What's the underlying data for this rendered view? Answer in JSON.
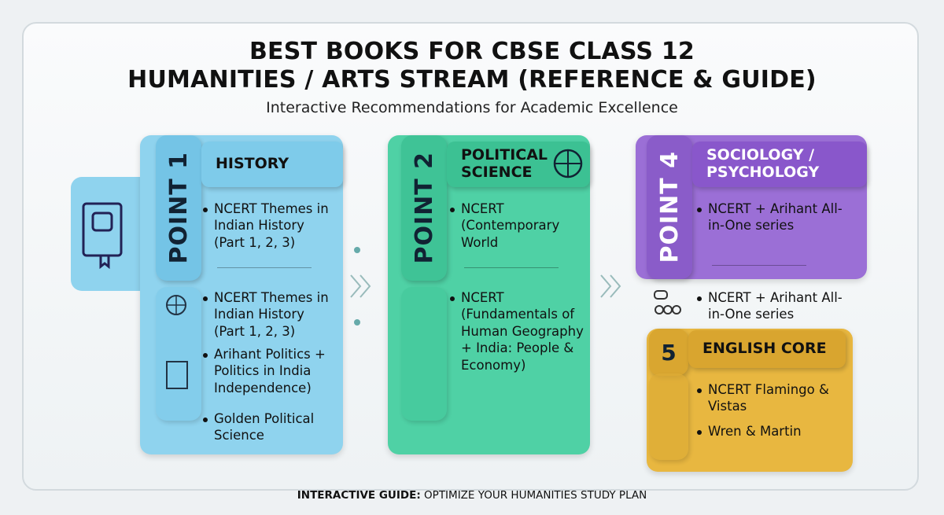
{
  "header": {
    "title_line1": "BEST BOOKS FOR CBSE CLASS 12",
    "title_line2": "HUMANITIES / ARTS STREAM (REFERENCE & GUIDE)",
    "subtitle": "Interactive Recommendations for Academic Excellence"
  },
  "cards": [
    {
      "point": "POINT 1",
      "heading": "HISTORY",
      "items": [
        "NCERT Themes in Indian History (Part 1, 2, 3)",
        "NCERT Themes in Indian History (Part 1, 2, 3)",
        "Arihant Politics + Politics in India Independence)",
        "Golden Political Science"
      ]
    },
    {
      "point": "POINT 2",
      "heading": "POLITICAL SCIENCE",
      "items": [
        "NCERT (Contemporary World",
        "NCERT (Fundamentals of Human Geography + India: People & Economy)"
      ]
    },
    {
      "point": "POINT 4",
      "heading": "SOCIOLOGY / PSYCHOLOGY",
      "items": [
        "NCERT + Arihant All-in-One series"
      ]
    },
    {
      "point": "5",
      "heading": "ENGLISH CORE",
      "items": [
        "NCERT Flamingo & Vistas",
        "Wren & Martin"
      ]
    }
  ],
  "extra_item": "NCERT + Arihant All-in-One series",
  "footer": {
    "label": "INTERACTIVE GUIDE:",
    "text": "OPTIMIZE YOUR HUMANITIES STUDY PLAN"
  }
}
